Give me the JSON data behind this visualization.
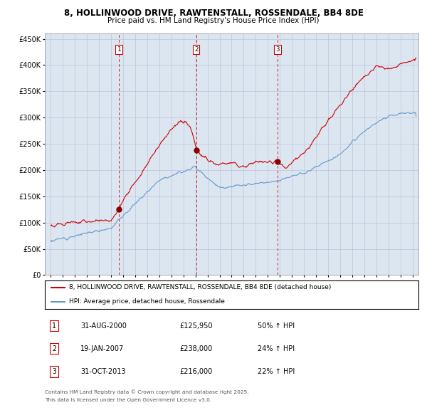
{
  "title1": "8, HOLLINWOOD DRIVE, RAWTENSTALL, ROSSENDALE, BB4 8DE",
  "title2": "Price paid vs. HM Land Registry's House Price Index (HPI)",
  "legend_line1": "8, HOLLINWOOD DRIVE, RAWTENSTALL, ROSSENDALE, BB4 8DE (detached house)",
  "legend_line2": "HPI: Average price, detached house, Rossendale",
  "sale_color": "#cc0000",
  "hpi_color": "#6699cc",
  "vline_color": "#cc0000",
  "sale_dates": [
    2000.66,
    2007.05,
    2013.83
  ],
  "sale_prices": [
    125950,
    238000,
    216000
  ],
  "sale_labels": [
    "1",
    "2",
    "3"
  ],
  "transactions": [
    {
      "num": "1",
      "date": "31-AUG-2000",
      "price": "£125,950",
      "hpi": "50% ↑ HPI"
    },
    {
      "num": "2",
      "date": "19-JAN-2007",
      "price": "£238,000",
      "hpi": "24% ↑ HPI"
    },
    {
      "num": "3",
      "date": "31-OCT-2013",
      "price": "£216,000",
      "hpi": "22% ↑ HPI"
    }
  ],
  "footer1": "Contains HM Land Registry data © Crown copyright and database right 2025.",
  "footer2": "This data is licensed under the Open Government Licence v3.0.",
  "plot_bg": "#dce6f1",
  "ylim": [
    0,
    460000
  ],
  "xlim_start": 1994.5,
  "xlim_end": 2025.5,
  "yticks": [
    0,
    50000,
    100000,
    150000,
    200000,
    250000,
    300000,
    350000,
    400000,
    450000
  ]
}
